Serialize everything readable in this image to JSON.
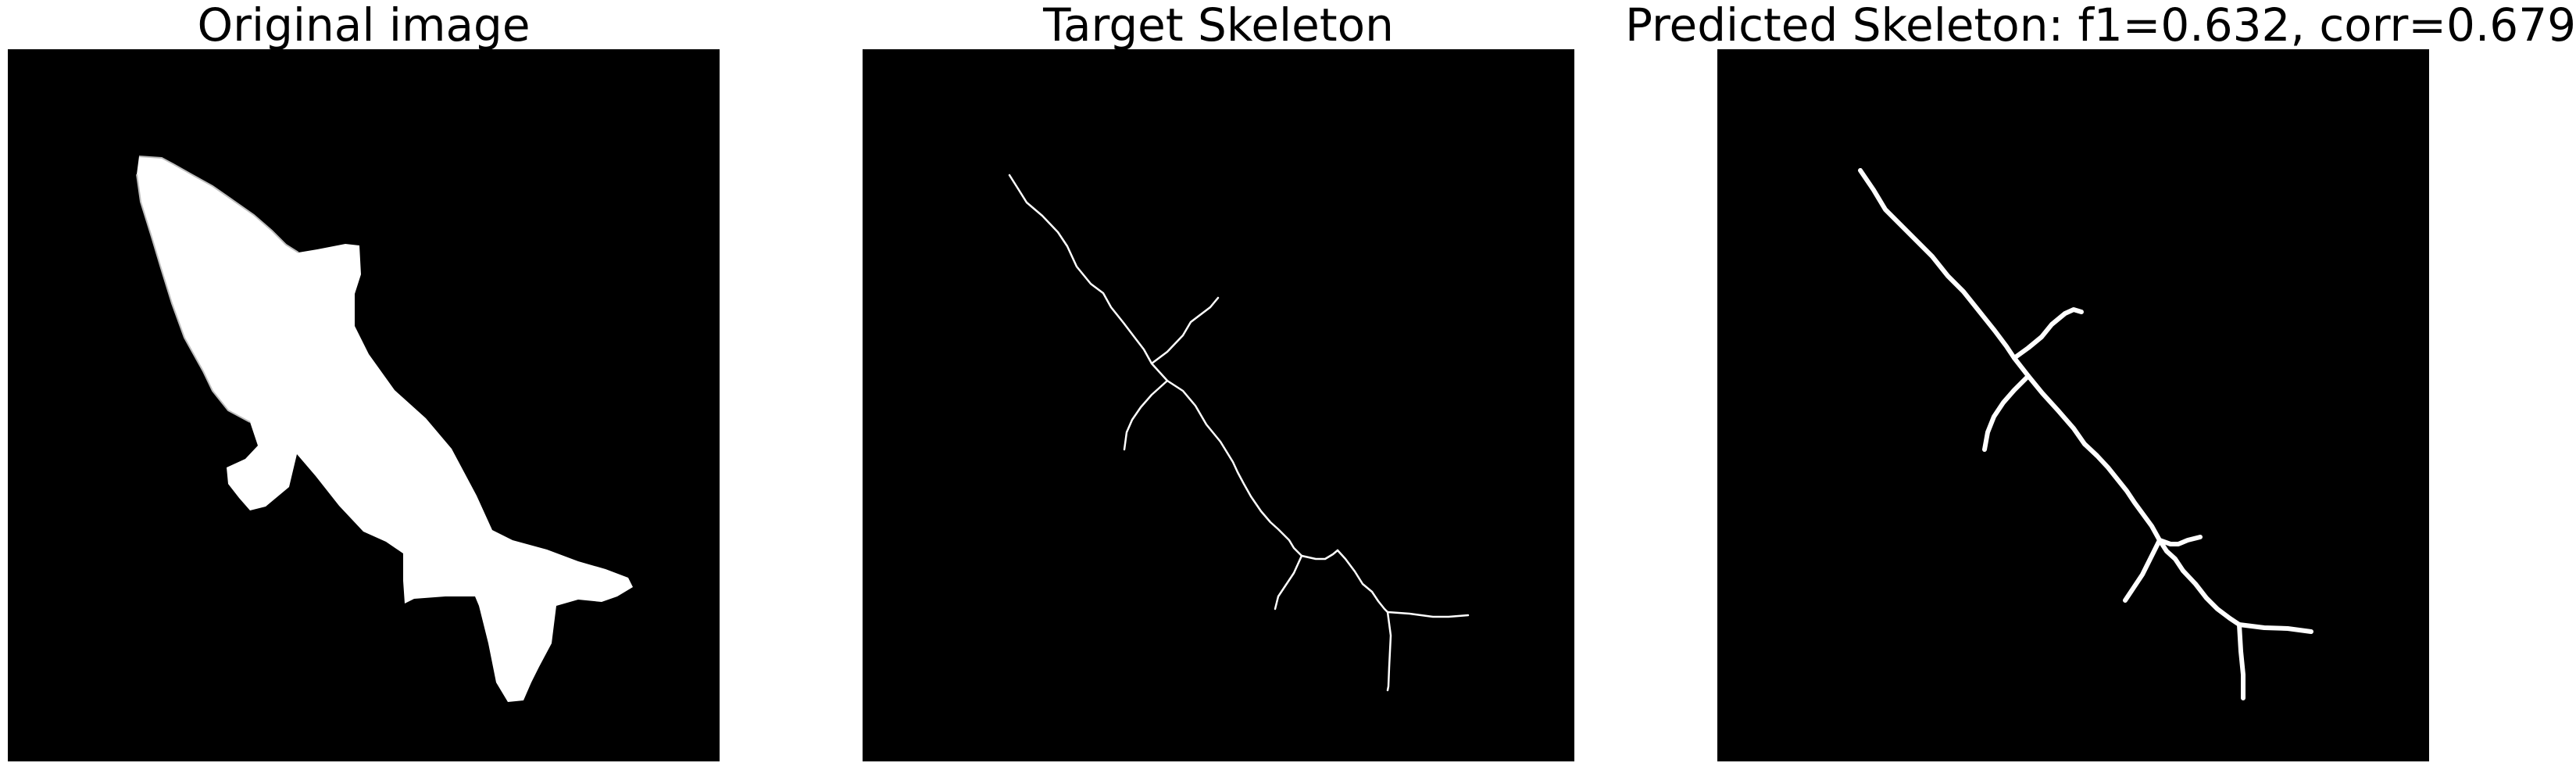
{
  "figure": {
    "panels": [
      {
        "title": "Original image"
      },
      {
        "title": "Target Skeleton"
      },
      {
        "title": "Predicted Skeleton: f1=0.632, corr=0.679"
      }
    ],
    "colors": {
      "background": "#000000",
      "foreground": "#ffffff"
    },
    "icons": [
      "fish-silhouette",
      "skeleton-lines"
    ]
  }
}
